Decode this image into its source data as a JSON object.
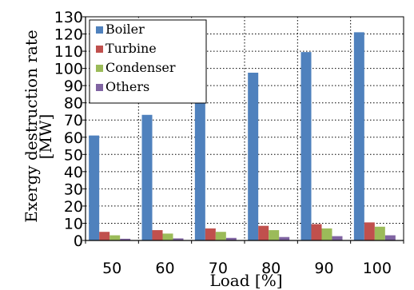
{
  "chart_data": {
    "type": "bar",
    "categories": [
      "50",
      "60",
      "70",
      "80",
      "90",
      "100"
    ],
    "series": [
      {
        "name": "Boiler",
        "values": [
          61,
          73,
          85,
          97.5,
          109.5,
          121
        ],
        "color": "#4f81bd"
      },
      {
        "name": "Turbine",
        "values": [
          5,
          6,
          7,
          8.5,
          9.5,
          10.5
        ],
        "color": "#c0504d"
      },
      {
        "name": "Condenser",
        "values": [
          3,
          4,
          5,
          6,
          7,
          8
        ],
        "color": "#9bbb59"
      },
      {
        "name": "Others",
        "values": [
          1,
          1.2,
          1.5,
          2,
          2.5,
          3
        ],
        "color": "#8064a2"
      }
    ],
    "xlabel": "Load [%]",
    "ylabel_line1": "Exergy destruction rate",
    "ylabel_line2": "[MW]",
    "ylim": [
      0,
      130
    ],
    "yticks": [
      0,
      10,
      20,
      30,
      40,
      50,
      60,
      70,
      80,
      90,
      100,
      110,
      120,
      130
    ],
    "grid": true,
    "grid_style": "dotted",
    "legend_position": "top-left"
  }
}
